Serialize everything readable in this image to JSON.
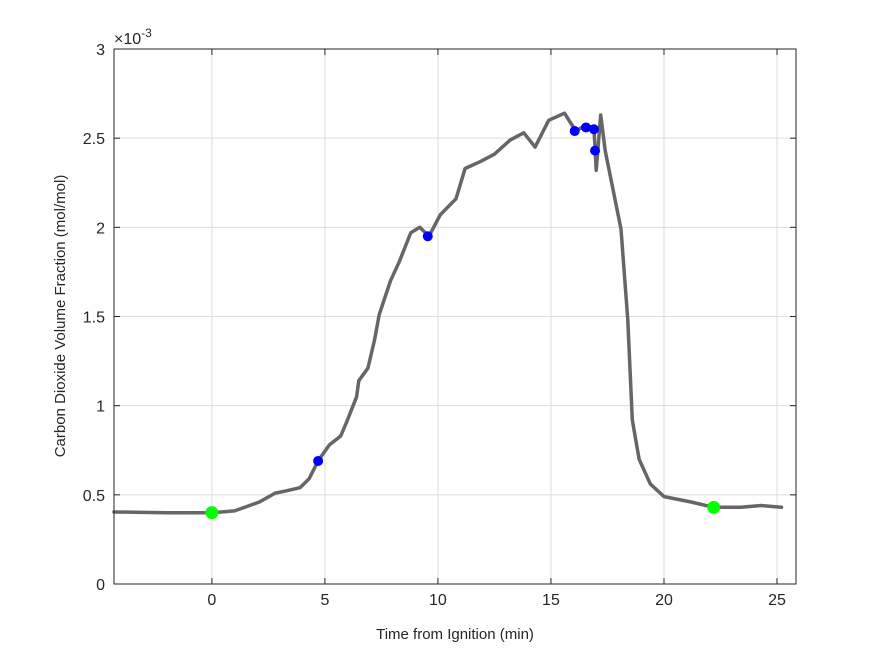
{
  "chart_data": {
    "type": "line",
    "title": "",
    "xlabel": "Time from Ignition (min)",
    "ylabel": "Carbon Dioxide Volume Fraction (mol/mol)",
    "y_multiplier": {
      "base": "×10",
      "exponent": "-3"
    },
    "xlim": [
      -4.33,
      25.84
    ],
    "ylim": [
      0,
      3
    ],
    "xticks": [
      0,
      5,
      10,
      15,
      20,
      25
    ],
    "xtick_labels": [
      "0",
      "5",
      "10",
      "15",
      "20",
      "25"
    ],
    "yticks": [
      0,
      0.5,
      1,
      1.5,
      2,
      2.5,
      3
    ],
    "ytick_labels": [
      "0",
      "0.5",
      "1",
      "1.5",
      "2",
      "2.5",
      "3"
    ],
    "grid": true,
    "series": [
      {
        "color": "#666666",
        "x": [
          -4.33,
          -2,
          0.0,
          1.0,
          2.1,
          2.8,
          3.2,
          3.9,
          4.3,
          4.7,
          5.2,
          5.7,
          6.0,
          6.4,
          6.5,
          6.9,
          7.2,
          7.4,
          7.9,
          8.3,
          8.8,
          9.2,
          9.6,
          10.1,
          10.8,
          11.2,
          11.9,
          12.5,
          13.2,
          13.8,
          14.3,
          14.9,
          15.6,
          16.1,
          16.5,
          16.9,
          17.0,
          17.2,
          17.4,
          17.7,
          18.1,
          18.4,
          18.6,
          18.9,
          19.4,
          20.0,
          21.2,
          22.2,
          23.4,
          24.3,
          25.2
        ],
        "y": [
          0.404,
          0.4,
          0.4,
          0.41,
          0.46,
          0.51,
          0.52,
          0.54,
          0.59,
          0.69,
          0.78,
          0.83,
          0.92,
          1.05,
          1.14,
          1.21,
          1.37,
          1.51,
          1.7,
          1.81,
          1.97,
          2.0,
          1.95,
          2.07,
          2.16,
          2.33,
          2.37,
          2.41,
          2.49,
          2.53,
          2.45,
          2.6,
          2.64,
          2.54,
          2.57,
          2.56,
          2.32,
          2.63,
          2.43,
          2.24,
          1.99,
          1.48,
          0.92,
          0.7,
          0.56,
          0.49,
          0.46,
          0.43,
          0.43,
          0.44,
          0.43
        ]
      }
    ],
    "markers": [
      {
        "color": "#00ff00",
        "points": [
          [
            0.0,
            0.4
          ],
          [
            22.2,
            0.43
          ]
        ]
      },
      {
        "color": "#0000ff",
        "points": [
          [
            4.7,
            0.69
          ],
          [
            9.55,
            1.95
          ],
          [
            16.05,
            2.54
          ],
          [
            16.55,
            2.56
          ],
          [
            16.9,
            2.55
          ],
          [
            16.95,
            2.43
          ]
        ]
      }
    ]
  }
}
